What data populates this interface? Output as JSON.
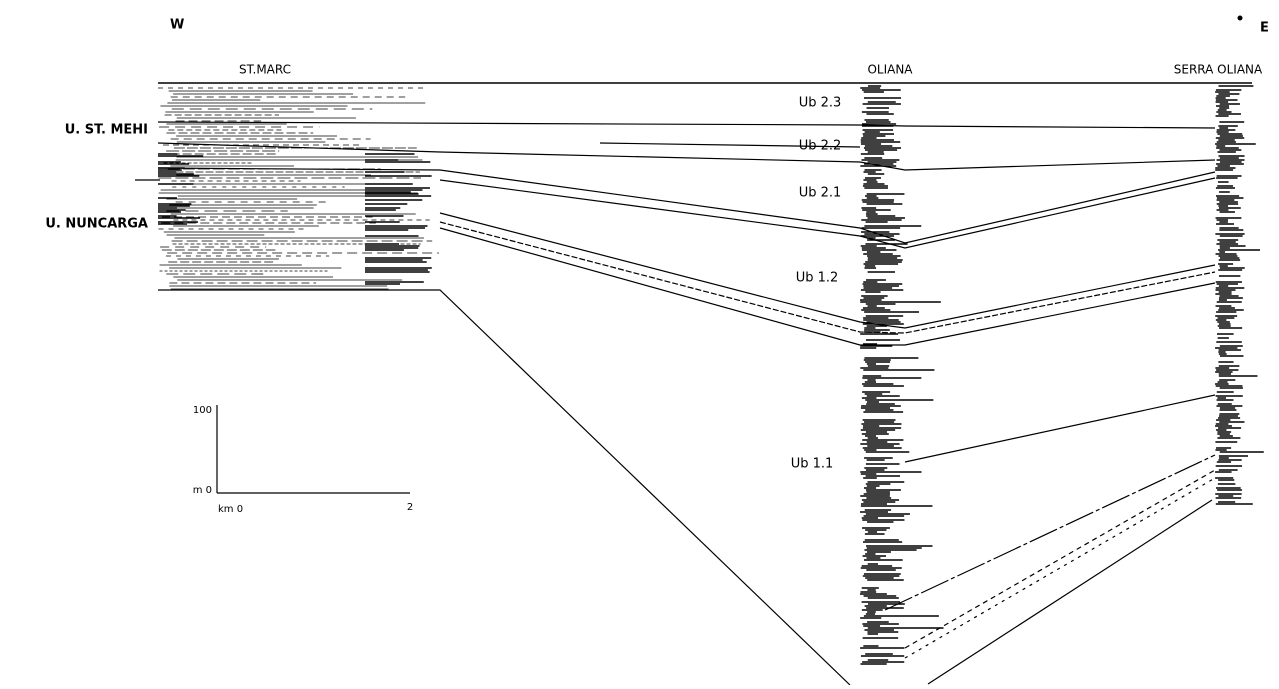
{
  "header": {
    "west": "W",
    "east": "E"
  },
  "wells": [
    "ST.MARC",
    "OLIANA",
    "SERRA OLIANA"
  ],
  "units": [
    "U. ST. MEHI",
    "U. NUNCARGA"
  ],
  "sequences": [
    "Ub 2.3",
    "Ub 2.2",
    "Ub 2.1",
    "Ub 1.2",
    "Ub 1.1"
  ],
  "scale": {
    "vertical_top": "100",
    "vertical_zero": "m 0",
    "horizontal_zero": "km 0",
    "horizontal_end": "2"
  }
}
